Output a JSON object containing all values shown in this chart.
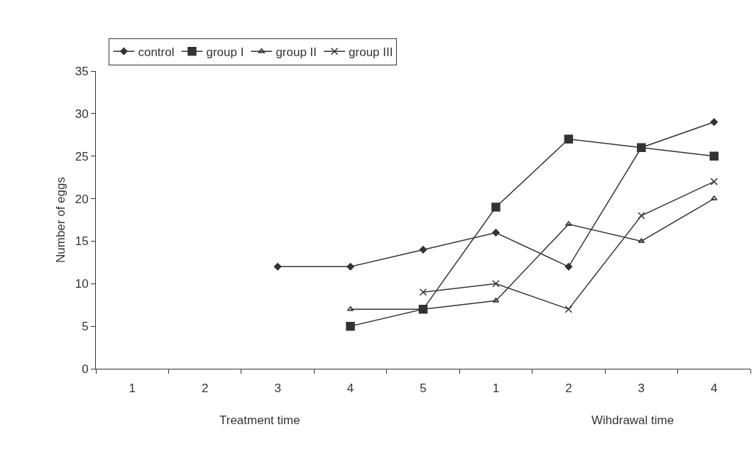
{
  "chart_data": {
    "type": "line",
    "ylabel": "Number of eggs",
    "categories": [
      "1",
      "2",
      "3",
      "4",
      "5",
      "1",
      "2",
      "3",
      "4"
    ],
    "series": [
      {
        "name": "control",
        "color": "#333333",
        "marker": "diamond",
        "values": [
          null,
          null,
          12,
          12,
          14,
          16,
          12,
          26,
          29
        ]
      },
      {
        "name": "group I",
        "color": "#333333",
        "marker": "square",
        "values": [
          null,
          null,
          null,
          5,
          7,
          19,
          27,
          26,
          25
        ]
      },
      {
        "name": "group II",
        "color": "#333333",
        "marker": "triangle",
        "values": [
          null,
          null,
          null,
          7,
          7,
          8,
          17,
          15,
          20
        ]
      },
      {
        "name": "group III",
        "color": "#333333",
        "marker": "cross",
        "values": [
          null,
          null,
          null,
          null,
          9,
          10,
          7,
          18,
          22
        ]
      }
    ],
    "ylim": [
      0,
      35
    ],
    "yticks": [
      0,
      5,
      10,
      15,
      20,
      25,
      30,
      35
    ],
    "grid": false,
    "legend": "top",
    "annotations": [
      "Treatment time",
      "Wihdrawal time"
    ]
  }
}
